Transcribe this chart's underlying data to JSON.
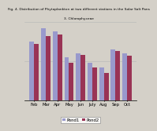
{
  "title_line1": "Fig. 4. Distribution of Phytoplankton at two different stations in the Solar Salt Pans",
  "title_line2": "3. Chlorophyceae",
  "categories": [
    "Feb",
    "Mar",
    "Apr",
    "May",
    "Jun",
    "July",
    "Aug",
    "Sep",
    "Oct"
  ],
  "pond1": [
    75,
    92,
    88,
    55,
    60,
    48,
    42,
    65,
    60
  ],
  "pond2": [
    72,
    82,
    84,
    48,
    58,
    42,
    35,
    63,
    57
  ],
  "pond1_color": "#9999CC",
  "pond2_color": "#993355",
  "legend_labels": [
    "Pond1",
    "Pond2"
  ],
  "ylim": [
    0,
    100
  ],
  "bar_width": 0.4,
  "title_fontsize": 3.2,
  "tick_fontsize": 3.8,
  "legend_fontsize": 3.8,
  "background_color": "#d4d0c8",
  "plot_bg_color": "#d4d0c8",
  "grid_color": "#bbbbbb"
}
